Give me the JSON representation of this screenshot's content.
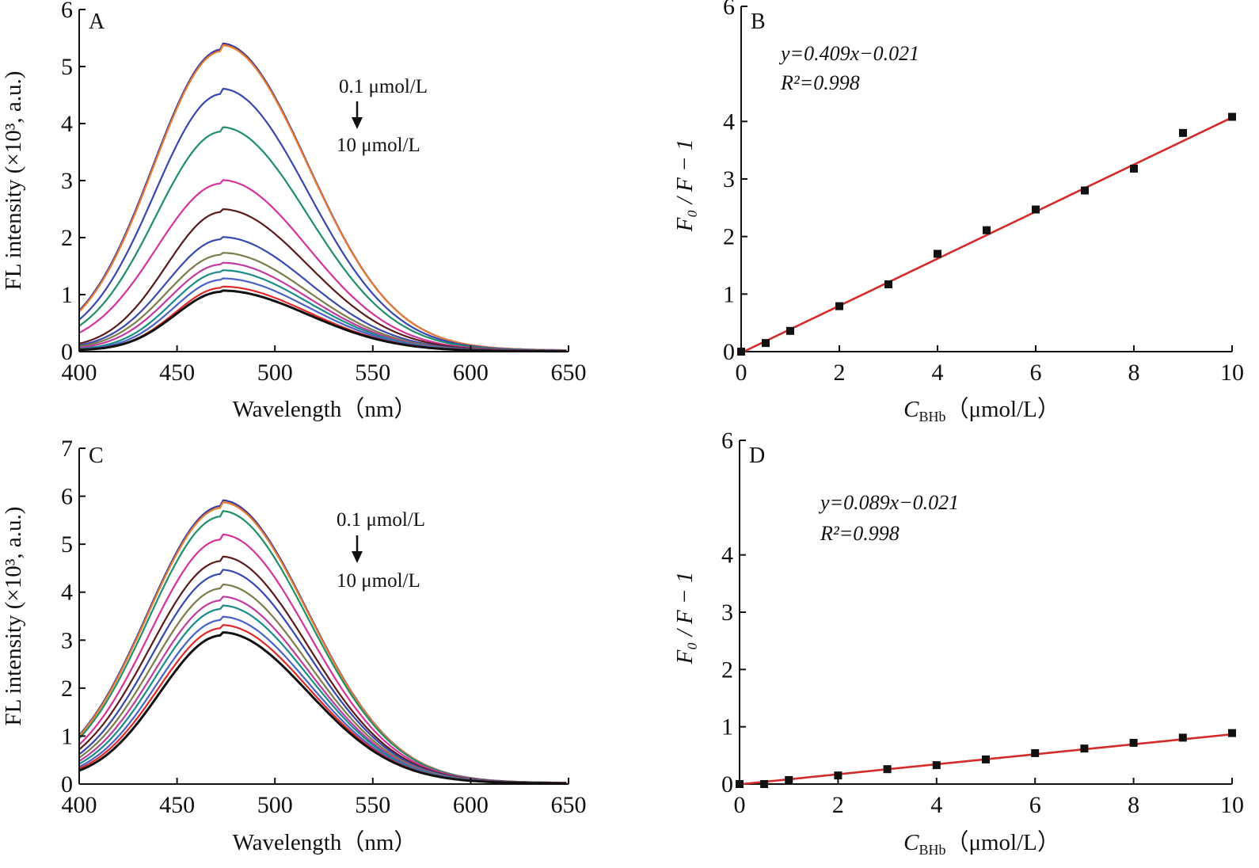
{
  "chart_data": [
    {
      "id": "A",
      "type": "line",
      "panel_label": "A",
      "xlabel": "Wavelength（nm）",
      "ylabel": "FL  intensity (×10³, a.u.)",
      "xlim": [
        400,
        650
      ],
      "ylim": [
        0,
        6
      ],
      "xticks": [
        "400",
        "450",
        "500",
        "550",
        "600",
        "650"
      ],
      "yticks": [
        "0",
        "1",
        "2",
        "3",
        "4",
        "5",
        "6"
      ],
      "peak_wavelength": 473,
      "annotation_top": "0.1  μmol/L",
      "annotation_bottom": "10  μmol/L",
      "series": [
        {
          "name": "s1",
          "color": "#3a3aa0",
          "peak": 5.3,
          "start": 0.72
        },
        {
          "name": "s2",
          "color": "#e87b2f",
          "peak": 5.27,
          "start": 0.7
        },
        {
          "name": "s3",
          "color": "#3747b0",
          "peak": 4.52,
          "start": 0.56
        },
        {
          "name": "s4",
          "color": "#1f8f6a",
          "peak": 3.86,
          "start": 0.45
        },
        {
          "name": "s5",
          "color": "#d6339a",
          "peak": 2.95,
          "start": 0.33
        },
        {
          "name": "s6",
          "color": "#5a1a1a",
          "peak": 2.45,
          "start": 0.14
        },
        {
          "name": "s7",
          "color": "#3a4ab0",
          "peak": 1.97,
          "start": 0.11
        },
        {
          "name": "s8",
          "color": "#7c7c4a",
          "peak": 1.7,
          "start": 0.09
        },
        {
          "name": "s9",
          "color": "#c03aa0",
          "peak": 1.53,
          "start": 0.07
        },
        {
          "name": "s10",
          "color": "#1b8a8a",
          "peak": 1.4,
          "start": 0.05
        },
        {
          "name": "s11",
          "color": "#4a62c8",
          "peak": 1.26,
          "start": 0.04
        },
        {
          "name": "s12",
          "color": "#e02828",
          "peak": 1.12,
          "start": 0.02
        },
        {
          "name": "s13",
          "color": "#111111",
          "peak": 1.05,
          "start": 0.01
        }
      ]
    },
    {
      "id": "B",
      "type": "scatter",
      "panel_label": "B",
      "xlabel_main": "C",
      "xlabel_sub": "BHb",
      "xlabel_unit": "（μmol/L）",
      "ylabel": "F₀ / F − 1",
      "xlim": [
        0,
        10
      ],
      "ylim": [
        0,
        6
      ],
      "xticks": [
        "0",
        "2",
        "4",
        "6",
        "8",
        "10"
      ],
      "yticks": [
        "0",
        "1",
        "2",
        "3",
        "4",
        "6"
      ],
      "x": [
        0,
        0.5,
        1,
        2,
        3,
        4,
        5,
        6,
        7,
        8,
        9,
        10
      ],
      "y": [
        0.0,
        0.15,
        0.36,
        0.79,
        1.17,
        1.7,
        2.11,
        2.47,
        2.8,
        3.18,
        3.8,
        4.08
      ],
      "fit": {
        "slope": 0.409,
        "intercept": -0.021,
        "color": "#d42a2a"
      },
      "equation": "y=0.409x−0.021",
      "r2": "R²=0.998"
    },
    {
      "id": "C",
      "type": "line",
      "panel_label": "C",
      "xlabel": "Wavelength（nm）",
      "ylabel": "FL  intensity (×10³, a.u.)",
      "xlim": [
        400,
        650
      ],
      "ylim": [
        0,
        7
      ],
      "xticks": [
        "400",
        "450",
        "500",
        "550",
        "600",
        "650"
      ],
      "yticks": [
        "0",
        "1",
        "2",
        "3",
        "4",
        "5",
        "6",
        "7"
      ],
      "peak_wavelength": 473,
      "annotation_top": "0.1  μmol/L",
      "annotation_bottom": "10  μmol/L",
      "series": [
        {
          "name": "s1",
          "color": "#3a3aa0",
          "peak": 5.8,
          "start": 1.02
        },
        {
          "name": "s2",
          "color": "#e87b2f",
          "peak": 5.76,
          "start": 1.0
        },
        {
          "name": "s3",
          "color": "#1f8f6a",
          "peak": 5.58,
          "start": 0.95
        },
        {
          "name": "s4",
          "color": "#d6339a",
          "peak": 5.1,
          "start": 0.82
        },
        {
          "name": "s5",
          "color": "#5a1a1a",
          "peak": 4.65,
          "start": 0.72
        },
        {
          "name": "s6",
          "color": "#3747b0",
          "peak": 4.38,
          "start": 0.62
        },
        {
          "name": "s7",
          "color": "#7c7c4a",
          "peak": 4.08,
          "start": 0.55
        },
        {
          "name": "s8",
          "color": "#c03aa0",
          "peak": 3.83,
          "start": 0.48
        },
        {
          "name": "s9",
          "color": "#1b8a8a",
          "peak": 3.65,
          "start": 0.42
        },
        {
          "name": "s10",
          "color": "#4a62c8",
          "peak": 3.42,
          "start": 0.36
        },
        {
          "name": "s11",
          "color": "#e02828",
          "peak": 3.25,
          "start": 0.32
        },
        {
          "name": "s12",
          "color": "#111111",
          "peak": 3.1,
          "start": 0.28
        }
      ]
    },
    {
      "id": "D",
      "type": "scatter",
      "panel_label": "D",
      "xlabel_main": "C",
      "xlabel_sub": "BHb",
      "xlabel_unit": "（μmol/L）",
      "ylabel": "F₀ / F − 1",
      "xlim": [
        0,
        10
      ],
      "ylim": [
        0,
        6
      ],
      "xticks": [
        "0",
        "2",
        "4",
        "6",
        "8",
        "10"
      ],
      "yticks": [
        "0",
        "1",
        "2",
        "3",
        "4",
        "6"
      ],
      "x": [
        0,
        0.5,
        1,
        2,
        3,
        4,
        5,
        6,
        7,
        8,
        9,
        10
      ],
      "y": [
        0.0,
        0.0,
        0.07,
        0.15,
        0.26,
        0.33,
        0.43,
        0.54,
        0.62,
        0.72,
        0.81,
        0.89
      ],
      "fit": {
        "slope": 0.089,
        "intercept": -0.021,
        "color": "#d42a2a"
      },
      "equation": "y=0.089x−0.021",
      "r2": "R²=0.998"
    }
  ]
}
